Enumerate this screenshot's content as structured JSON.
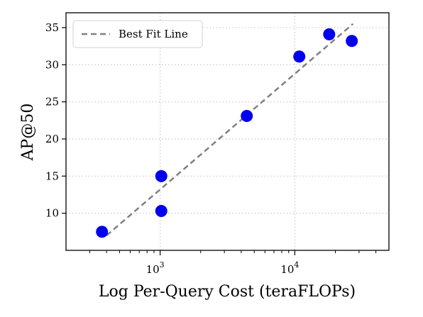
{
  "chart_data": {
    "type": "scatter",
    "title": "",
    "xlabel": "Log Per-Query Cost (teraFLOPs)",
    "ylabel": "AP@50",
    "x_scale": "log",
    "xlim": [
      200,
      50000
    ],
    "ylim": [
      5,
      37
    ],
    "x_ticks": [
      {
        "value": 1000,
        "base": "10",
        "exp": "3"
      },
      {
        "value": 10000,
        "base": "10",
        "exp": "4"
      }
    ],
    "y_ticks": [
      10,
      15,
      20,
      25,
      30,
      35
    ],
    "grid": true,
    "legend": {
      "position": "top-left",
      "entries": [
        "Best Fit Line"
      ]
    },
    "series": [
      {
        "points": [
          {
            "x": 370,
            "y": 7.5
          },
          {
            "x": 1020,
            "y": 10.3
          },
          {
            "x": 1020,
            "y": 15.0
          },
          {
            "x": 4400,
            "y": 23.1
          },
          {
            "x": 10800,
            "y": 31.1
          },
          {
            "x": 18000,
            "y": 34.1
          },
          {
            "x": 26500,
            "y": 33.2
          }
        ],
        "color": "#0000ee"
      }
    ],
    "fit_line": {
      "from": {
        "x": 400,
        "y": 7.0
      },
      "to": {
        "x": 27000,
        "y": 35.5
      },
      "color": "#808080"
    }
  }
}
